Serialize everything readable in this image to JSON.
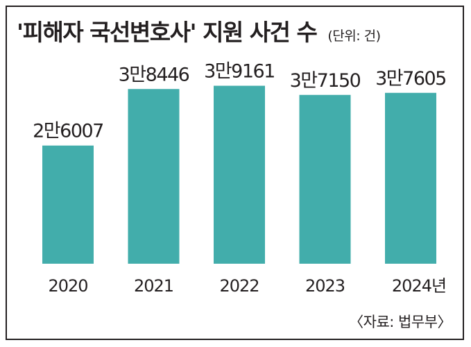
{
  "title": "'피해자 국선변호사' 지원 사건 수",
  "unit_note": "(단위: 건)",
  "source": "〈자료: 법무부〉",
  "colors": {
    "bar": "#42adab",
    "text": "#231f20",
    "border": "#231f20"
  },
  "chart_data": {
    "type": "bar",
    "title": "'피해자 국선변호사' 지원 사건 수",
    "xlabel": "",
    "ylabel": "",
    "categories": [
      "2020",
      "2021",
      "2022",
      "2023",
      "2024년"
    ],
    "values": [
      26007,
      38446,
      39161,
      37150,
      37605
    ],
    "data_labels": [
      "2만6007",
      "3만8446",
      "3만9161",
      "3만7150",
      "3만7605"
    ],
    "ylim": [
      0,
      42000
    ],
    "grid": false,
    "legend": "none"
  }
}
